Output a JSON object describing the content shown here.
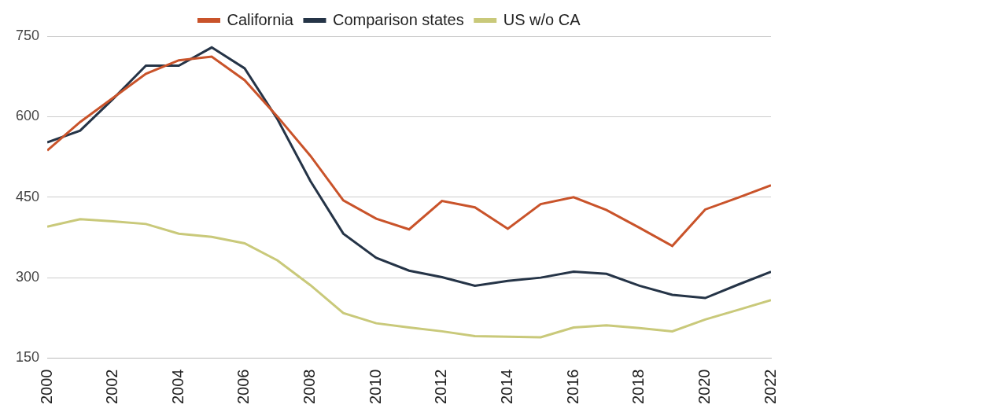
{
  "chart_data": {
    "type": "line",
    "categories": [
      "2000",
      null,
      "2002",
      null,
      "2004",
      null,
      "2006",
      null,
      "2008",
      null,
      "2010",
      null,
      "2012",
      null,
      "2014",
      null,
      "2016",
      null,
      "2018",
      null,
      "2020",
      null,
      "2022"
    ],
    "series": [
      {
        "name": "California",
        "color": "#c9532a",
        "values": [
          537,
          590,
          635,
          680,
          705,
          712,
          668,
          600,
          527,
          444,
          410,
          390,
          443,
          431,
          391,
          437,
          450,
          426,
          393,
          359,
          427,
          449,
          472
        ]
      },
      {
        "name": "Comparison states",
        "color": "#253447",
        "values": [
          552,
          574,
          633,
          695,
          695,
          729,
          690,
          595,
          480,
          382,
          337,
          313,
          301,
          285,
          294,
          300,
          311,
          307,
          285,
          268,
          262,
          287,
          311
        ]
      },
      {
        "name": "US w/o CA",
        "color": "#c9c97a",
        "values": [
          395,
          409,
          405,
          400,
          382,
          376,
          364,
          332,
          286,
          234,
          215,
          207,
          200,
          191,
          190,
          189,
          207,
          211,
          206,
          200,
          222,
          240,
          258
        ]
      }
    ],
    "ylim": [
      150,
      750
    ],
    "yticks": [
      150,
      300,
      450,
      600,
      750
    ],
    "grid": true,
    "legend": "top"
  }
}
